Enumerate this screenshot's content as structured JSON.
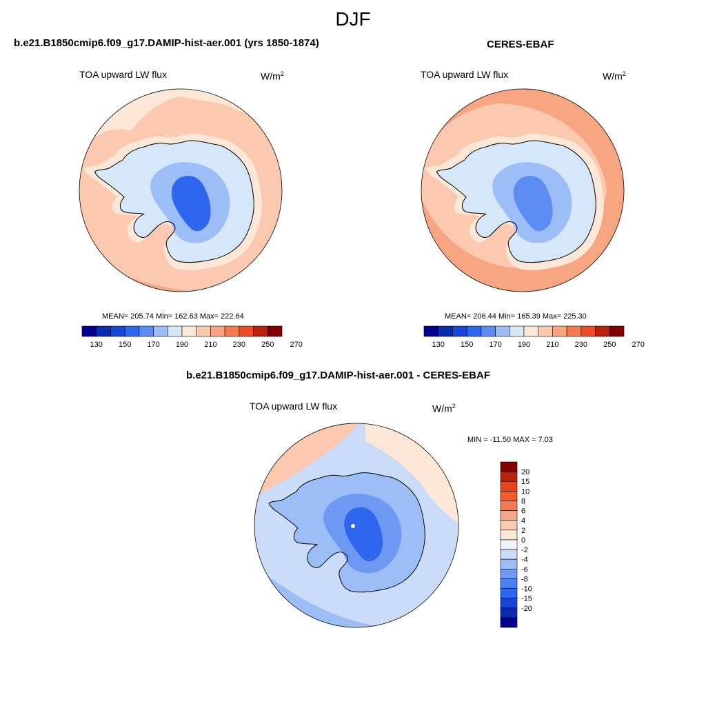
{
  "season": "DJF",
  "colors": {
    "abs_levels": [
      "#00008c",
      "#0a2bad",
      "#1746d8",
      "#2e66ee",
      "#5b8df2",
      "#9cbdf6",
      "#d7e7fa",
      "#fde8d8",
      "#fbc9af",
      "#f8a582",
      "#f67a50",
      "#ee4c26",
      "#b8220f",
      "#820000"
    ],
    "diff_levels": [
      "#00008c",
      "#0a2bad",
      "#1746d8",
      "#2e66ee",
      "#4a80f0",
      "#6e99f2",
      "#9cbdf6",
      "#cadcf8",
      "#f0f4fb",
      "#fde8d8",
      "#fbc9af",
      "#f8a582",
      "#f67a50",
      "#f55a2a",
      "#e84218",
      "#b8220f",
      "#820000"
    ]
  },
  "panels": [
    {
      "id": "model",
      "title": "b.e21.B1850cmip6.f09_g17.DAMIP-hist-aer.001 (yrs 1850-1874)",
      "variable": "TOA upward LW flux",
      "units_base": "W/m",
      "units_exp": "2",
      "stats": "MEAN= 205.74  Min= 162.63  Max= 222.64",
      "colorbar_labels": [
        "130",
        "150",
        "170",
        "190",
        "210",
        "230",
        "250",
        "270"
      ]
    },
    {
      "id": "obs",
      "title": "CERES-EBAF",
      "variable": "TOA upward LW flux",
      "units_base": "W/m",
      "units_exp": "2",
      "stats": "MEAN= 206.44  Min= 165.39  Max= 225.30",
      "colorbar_labels": [
        "130",
        "150",
        "170",
        "190",
        "210",
        "230",
        "250",
        "270"
      ]
    },
    {
      "id": "diff",
      "title": "b.e21.B1850cmip6.f09_g17.DAMIP-hist-aer.001 - CERES-EBAF",
      "variable": "TOA upward LW flux",
      "units_base": "W/m",
      "units_exp": "2",
      "stats": "MIN = -11.50 MAX =   7.03",
      "colorbar_labels": [
        "20",
        "15",
        "10",
        "8",
        "6",
        "4",
        "2",
        "0",
        "-2",
        "-4",
        "-6",
        "-8",
        "-10",
        "-15",
        "-20"
      ]
    }
  ]
}
